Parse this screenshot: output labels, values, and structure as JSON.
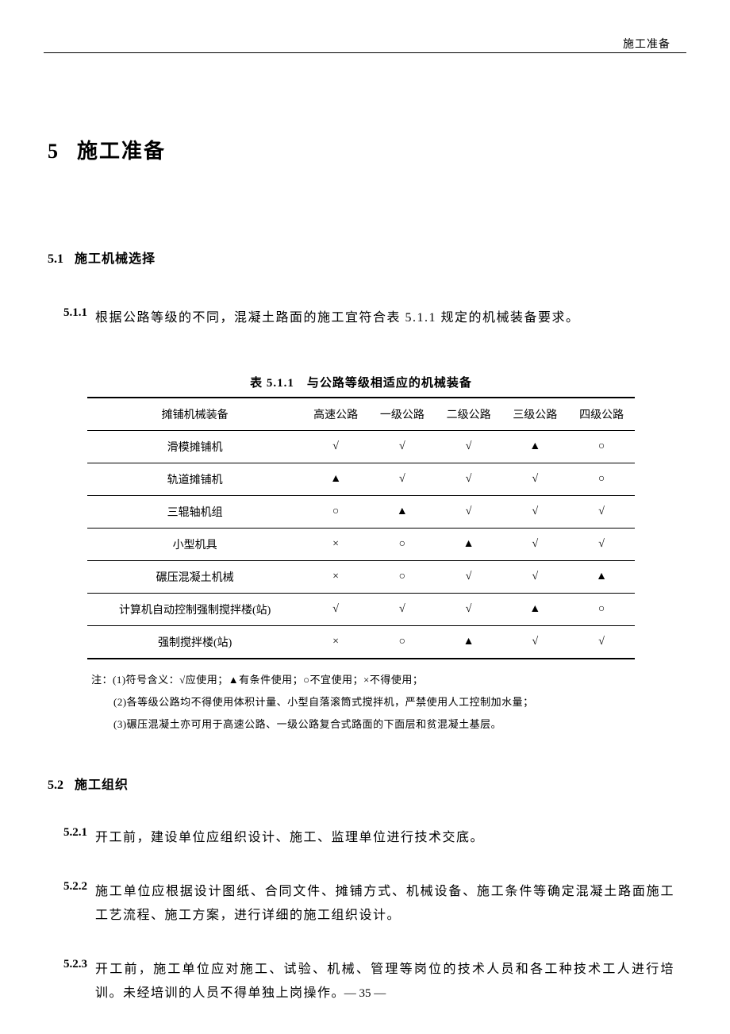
{
  "header": {
    "right": "施工准备"
  },
  "chapter": {
    "num": "5",
    "title": "施工准备"
  },
  "section1": {
    "num": "5.1",
    "title": "施工机械选择"
  },
  "clause511": {
    "num": "5.1.1",
    "text": "根据公路等级的不同，混凝土路面的施工宜符合表 5.1.1 规定的机械装备要求。"
  },
  "table": {
    "title": "表 5.1.1　与公路等级相适应的机械装备",
    "columns": [
      "摊铺机械装备",
      "高速公路",
      "一级公路",
      "二级公路",
      "三级公路",
      "四级公路"
    ],
    "symbols": {
      "check": "√",
      "triangle": "▲",
      "circle": "○",
      "cross": "×"
    },
    "rows": [
      {
        "name": "滑模摊铺机",
        "cells": [
          "check",
          "check",
          "check",
          "triangle",
          "circle"
        ]
      },
      {
        "name": "轨道摊铺机",
        "cells": [
          "triangle",
          "check",
          "check",
          "check",
          "circle"
        ]
      },
      {
        "name": "三辊轴机组",
        "cells": [
          "circle",
          "triangle",
          "check",
          "check",
          "check"
        ]
      },
      {
        "name": "小型机具",
        "cells": [
          "cross",
          "circle",
          "triangle",
          "check",
          "check"
        ]
      },
      {
        "name": "碾压混凝土机械",
        "cells": [
          "cross",
          "circle",
          "check",
          "check",
          "triangle"
        ]
      },
      {
        "name": "计算机自动控制强制搅拌楼(站)",
        "cells": [
          "check",
          "check",
          "check",
          "triangle",
          "circle"
        ]
      },
      {
        "name": "强制搅拌楼(站)",
        "cells": [
          "cross",
          "circle",
          "triangle",
          "check",
          "check"
        ]
      }
    ]
  },
  "notes": {
    "prefix": "注：",
    "lines": [
      "(1)符号含义：√应使用；▲有条件使用；○不宜使用；×不得使用；",
      "(2)各等级公路均不得使用体积计量、小型自落滚筒式搅拌机，严禁使用人工控制加水量；",
      "(3)碾压混凝土亦可用于高速公路、一级公路复合式路面的下面层和贫混凝土基层。"
    ]
  },
  "section2": {
    "num": "5.2",
    "title": "施工组织"
  },
  "clauses2": [
    {
      "num": "5.2.1",
      "text": "开工前，建设单位应组织设计、施工、监理单位进行技术交底。"
    },
    {
      "num": "5.2.2",
      "text": "施工单位应根据设计图纸、合同文件、摊铺方式、机械设备、施工条件等确定混凝土路面施工工艺流程、施工方案，进行详细的施工组织设计。"
    },
    {
      "num": "5.2.3",
      "text": "开工前，施工单位应对施工、试验、机械、管理等岗位的技术人员和各工种技术工人进行培训。未经培训的人员不得单独上岗操作。"
    }
  ],
  "page": "—  35  —"
}
